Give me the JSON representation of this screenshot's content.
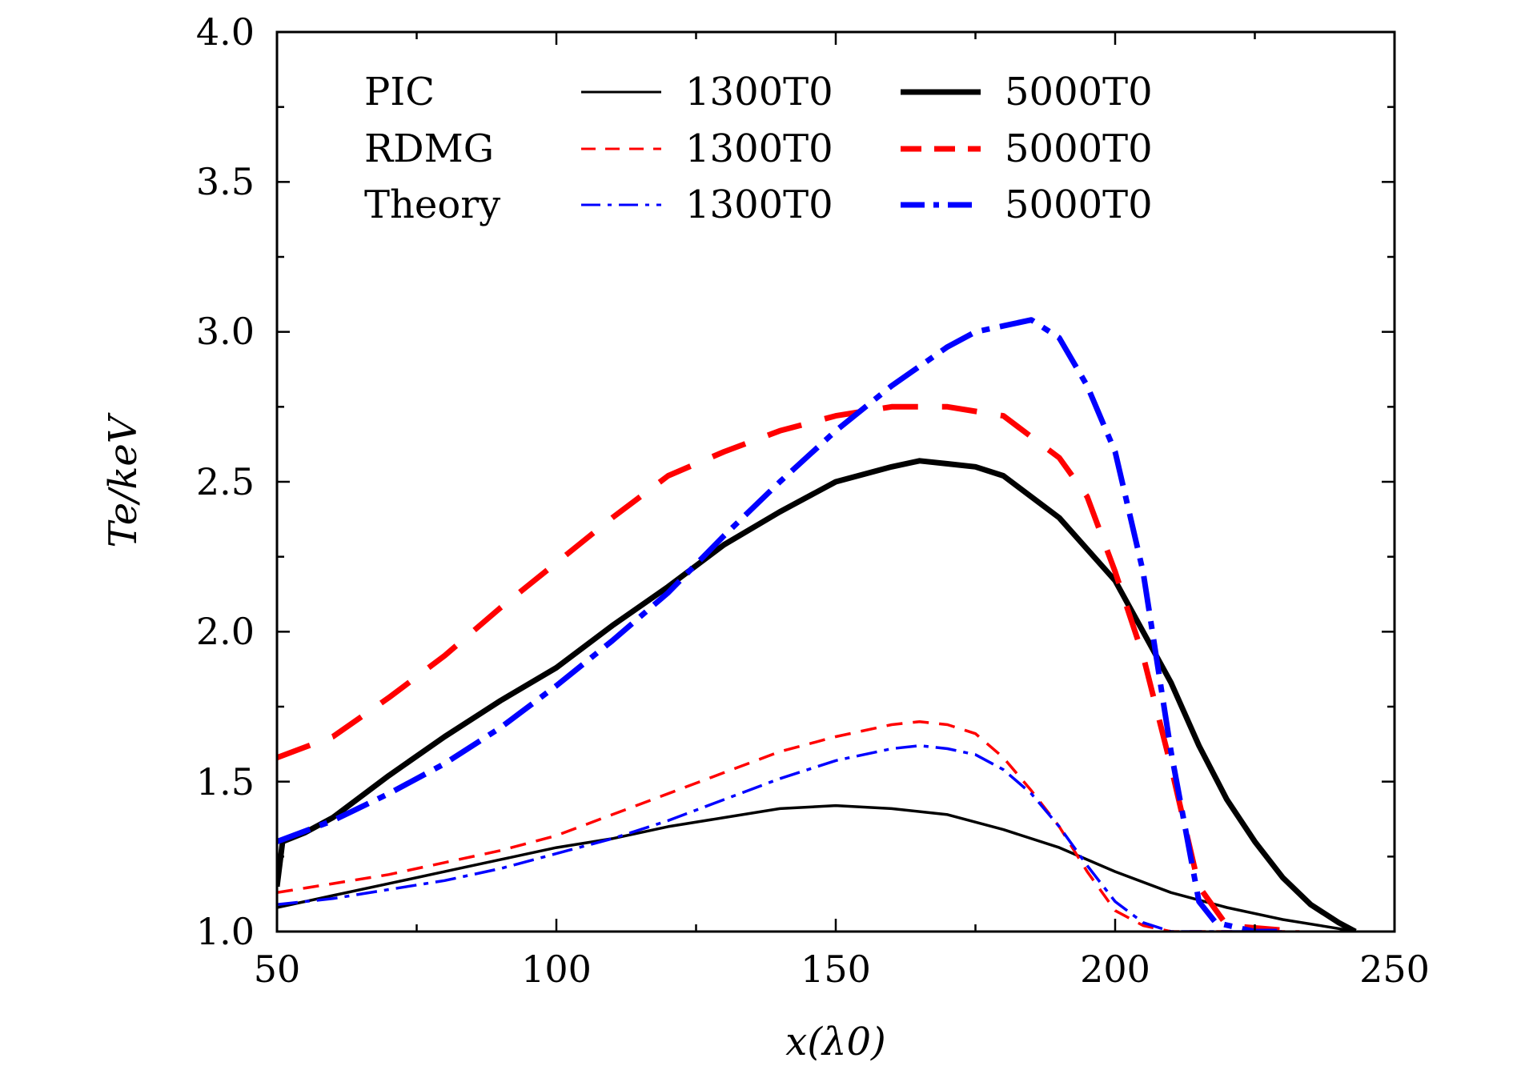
{
  "chart_data": {
    "type": "line",
    "xlabel": "x(λ0)",
    "ylabel": "Te/keV",
    "xlim": [
      50,
      250
    ],
    "ylim": [
      1.0,
      4.0
    ],
    "xticks": [
      "50",
      "100",
      "150",
      "200",
      "250"
    ],
    "yticks": [
      "1.0",
      "1.5",
      "2.0",
      "2.5",
      "3.0",
      "3.5",
      "4.0"
    ],
    "grid": false,
    "legend": {
      "placement": "top-left",
      "rows": [
        "PIC",
        "RDMG",
        "Theory"
      ],
      "columns": [
        "1300T0",
        "5000T0"
      ]
    },
    "series": [
      {
        "name": "PIC 1300T0",
        "color": "#000000",
        "style": "solid",
        "weight": "thin",
        "x": [
          50,
          55,
          60,
          70,
          80,
          90,
          100,
          110,
          120,
          130,
          140,
          150,
          160,
          170,
          180,
          190,
          200,
          210,
          220,
          230,
          240,
          243
        ],
        "y": [
          1.08,
          1.1,
          1.12,
          1.16,
          1.2,
          1.24,
          1.28,
          1.31,
          1.35,
          1.38,
          1.41,
          1.42,
          1.41,
          1.39,
          1.34,
          1.28,
          1.2,
          1.13,
          1.08,
          1.04,
          1.01,
          1.0
        ]
      },
      {
        "name": "PIC 5000T0",
        "color": "#000000",
        "style": "solid",
        "weight": "thick",
        "x": [
          50,
          51,
          55,
          60,
          70,
          80,
          90,
          100,
          110,
          120,
          130,
          140,
          150,
          160,
          165,
          170,
          175,
          180,
          190,
          200,
          205,
          210,
          215,
          220,
          225,
          230,
          235,
          240,
          243
        ],
        "y": [
          1.15,
          1.3,
          1.33,
          1.38,
          1.52,
          1.65,
          1.77,
          1.88,
          2.02,
          2.15,
          2.29,
          2.4,
          2.5,
          2.55,
          2.57,
          2.56,
          2.55,
          2.52,
          2.38,
          2.17,
          2.0,
          1.83,
          1.62,
          1.44,
          1.3,
          1.18,
          1.09,
          1.03,
          1.0
        ]
      },
      {
        "name": "RDMG 1300T0",
        "color": "#ff0000",
        "style": "dashed",
        "weight": "thin",
        "x": [
          50,
          60,
          70,
          80,
          90,
          100,
          110,
          120,
          130,
          140,
          150,
          160,
          165,
          170,
          175,
          180,
          185,
          190,
          195,
          200,
          205,
          210,
          220,
          233
        ],
        "y": [
          1.13,
          1.16,
          1.19,
          1.23,
          1.27,
          1.32,
          1.39,
          1.46,
          1.53,
          1.6,
          1.65,
          1.69,
          1.7,
          1.69,
          1.66,
          1.58,
          1.47,
          1.35,
          1.2,
          1.07,
          1.02,
          1.0,
          1.0,
          1.0
        ]
      },
      {
        "name": "RDMG 5000T0",
        "color": "#ff0000",
        "style": "dashed",
        "weight": "thick",
        "x": [
          50,
          60,
          70,
          80,
          90,
          100,
          110,
          120,
          130,
          140,
          150,
          160,
          165,
          170,
          180,
          190,
          195,
          200,
          205,
          210,
          215,
          220,
          233
        ],
        "y": [
          1.58,
          1.65,
          1.78,
          1.92,
          2.08,
          2.23,
          2.38,
          2.52,
          2.6,
          2.67,
          2.72,
          2.75,
          2.75,
          2.75,
          2.72,
          2.58,
          2.45,
          2.2,
          1.92,
          1.55,
          1.15,
          1.02,
          1.0
        ]
      },
      {
        "name": "Theory 1300T0",
        "color": "#0000ff",
        "style": "dashdot",
        "weight": "thin",
        "x": [
          50,
          60,
          70,
          80,
          90,
          100,
          110,
          120,
          130,
          140,
          150,
          160,
          165,
          170,
          175,
          180,
          185,
          190,
          195,
          200,
          205,
          210,
          220,
          230
        ],
        "y": [
          1.09,
          1.11,
          1.14,
          1.17,
          1.21,
          1.26,
          1.31,
          1.37,
          1.44,
          1.51,
          1.57,
          1.61,
          1.62,
          1.61,
          1.59,
          1.54,
          1.46,
          1.35,
          1.22,
          1.1,
          1.03,
          1.0,
          1.0,
          1.0
        ]
      },
      {
        "name": "Theory 5000T0",
        "color": "#0000ff",
        "style": "dashdot",
        "weight": "thick",
        "x": [
          50,
          60,
          70,
          80,
          90,
          100,
          110,
          120,
          130,
          140,
          150,
          160,
          170,
          175,
          180,
          185,
          190,
          195,
          200,
          205,
          210,
          215,
          218,
          225,
          230
        ],
        "y": [
          1.3,
          1.37,
          1.46,
          1.56,
          1.68,
          1.82,
          1.97,
          2.13,
          2.32,
          2.5,
          2.67,
          2.82,
          2.95,
          3.0,
          3.02,
          3.04,
          2.98,
          2.82,
          2.6,
          2.2,
          1.6,
          1.1,
          1.03,
          1.0,
          1.0
        ]
      }
    ]
  }
}
